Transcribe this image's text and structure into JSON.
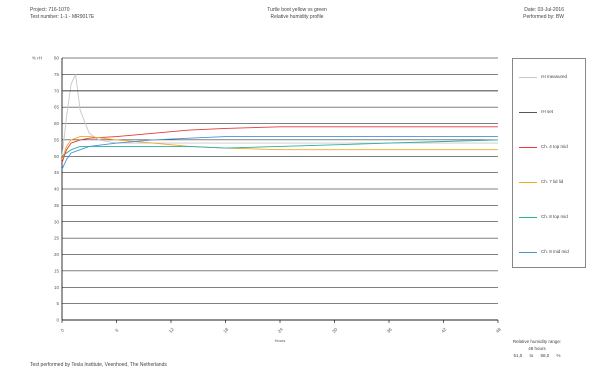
{
  "header": {
    "project": "Project: 716-1070",
    "test_number": "Test number: 1-1 - MR9017E",
    "title_line1": "Turtle boot yellow vs green",
    "title_line2": "Relative humidity profile",
    "date": "Date: 03-Jul-2016",
    "performed_by": "Performed by: BW"
  },
  "footer": {
    "text": "Test performed by Tesla Institute, Veenhoed, The Netherlands"
  },
  "range_box": {
    "title": "Relative humidity range:",
    "hours": "48 hours",
    "from": "51,0",
    "to_word": "to",
    "to": "58,0",
    "unit": "%"
  },
  "colors": {
    "rh_measured": "#c8c8c8",
    "in_set": "#555555",
    "ch_4_top_mid": "#e8393d",
    "ch_7": "#f5a623",
    "ch_8_top_mid": "#2cae9a",
    "ch_8_mid_mid": "#4a90d9"
  },
  "chart_data": {
    "type": "line",
    "title": "Relative humidity profile",
    "ylabel": "% rH",
    "xlabel": "Hours",
    "ylim": [
      0,
      80
    ],
    "xlim": [
      0,
      48
    ],
    "yticks": [
      "0",
      "5",
      "10",
      "15",
      "20",
      "25",
      "30",
      "35",
      "40",
      "45",
      "50",
      "55",
      "60",
      "65",
      "70",
      "75",
      "80"
    ],
    "xticks": [
      "0",
      "6",
      "12",
      "18",
      "24",
      "30",
      "36",
      "42",
      "48"
    ],
    "grid": true,
    "legend_position": "right",
    "series": [
      {
        "name": "rH measured",
        "color": "#c8c8c8",
        "x": [
          0,
          0.5,
          1,
          1.5,
          2,
          3,
          4,
          6,
          10,
          14,
          18,
          24,
          30,
          36,
          42,
          48
        ],
        "y": [
          50,
          62,
          72,
          75,
          64,
          57,
          55,
          54,
          54,
          54,
          54,
          54,
          54,
          54,
          54,
          54
        ]
      },
      {
        "name": "rH set",
        "color": "#555555",
        "x": [
          0,
          48
        ],
        "y": [
          70,
          70
        ]
      },
      {
        "name": "Ch. 4 top mid",
        "color": "#e8393d",
        "x": [
          0,
          0.5,
          1,
          2,
          3,
          6,
          10,
          14,
          18,
          24,
          30,
          36,
          42,
          48
        ],
        "y": [
          48,
          52,
          54,
          55,
          55.5,
          56,
          57,
          58,
          58.5,
          59,
          59,
          59,
          59,
          59
        ]
      },
      {
        "name": "Ch. 7 lid lid",
        "color": "#f5a623",
        "x": [
          0,
          0.5,
          1,
          2,
          3,
          6,
          10,
          14,
          18,
          24,
          30,
          36,
          42,
          48
        ],
        "y": [
          49,
          53,
          55,
          56,
          56,
          55,
          54,
          53,
          52.5,
          52,
          52,
          52,
          52,
          52
        ]
      },
      {
        "name": "Ch. 8 top mid",
        "color": "#2cae9a",
        "x": [
          0,
          0.5,
          1,
          2,
          3,
          6,
          10,
          14,
          18,
          24,
          30,
          36,
          42,
          48
        ],
        "y": [
          50,
          51,
          52,
          53,
          53,
          53,
          53,
          53,
          52.5,
          53,
          53.5,
          54,
          54.5,
          55
        ]
      },
      {
        "name": "Ch. 8 mid mid",
        "color": "#4a90d9",
        "x": [
          0,
          0.5,
          1,
          2,
          3,
          6,
          10,
          14,
          18,
          24,
          30,
          36,
          42,
          48
        ],
        "y": [
          46,
          49,
          51,
          52,
          53,
          54,
          55,
          55.5,
          56,
          56,
          56,
          56,
          56,
          56
        ]
      }
    ]
  }
}
